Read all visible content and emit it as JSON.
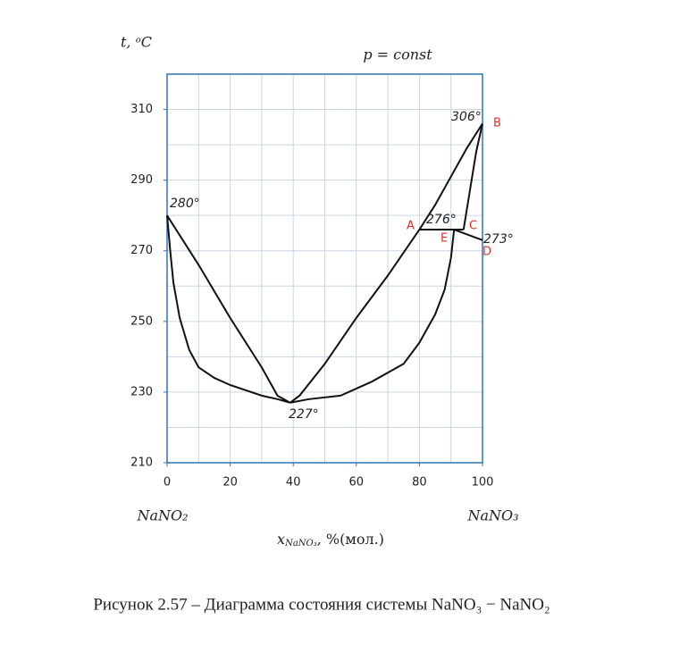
{
  "chart_data": {
    "type": "line",
    "title": "p = const",
    "ylabel": "t, ᵒC",
    "xlabel": {
      "main": "x",
      "sub": "NaNO₃",
      "rest": ", %(мол.)"
    },
    "left_component": "NaNO₂",
    "right_component": "NaNO₃",
    "caption": "Рисунок 2.57 – Диаграмма состояния системы NaNO₃ − NaNO₂",
    "xlim": [
      0,
      100
    ],
    "ylim": [
      210,
      320
    ],
    "xticks": [
      0,
      20,
      40,
      60,
      80,
      100
    ],
    "yticks": [
      210,
      230,
      250,
      270,
      290,
      310
    ],
    "xgrid": [
      10,
      20,
      30,
      40,
      50,
      60,
      70,
      80,
      90
    ],
    "ygrid": [
      220,
      230,
      240,
      250,
      260,
      270,
      280,
      290,
      300,
      310
    ],
    "grid_color": "#c9d6e3",
    "frame_color": "#2e75b6",
    "label_color": "#e03030",
    "series": [
      {
        "color": "#111111",
        "x": [
          0,
          10,
          20,
          30,
          35,
          39
        ],
        "y": [
          280,
          266,
          251,
          237,
          229,
          227
        ]
      },
      {
        "color": "#111111",
        "x": [
          0,
          1,
          2,
          4,
          7,
          10,
          15,
          20,
          30,
          35,
          39
        ],
        "y": [
          280,
          270,
          261,
          251,
          242,
          237,
          234,
          232,
          229,
          228,
          227
        ]
      },
      {
        "color": "#111111",
        "x": [
          39,
          42,
          50,
          60,
          70,
          80,
          85,
          90,
          95,
          100
        ],
        "y": [
          227,
          229,
          238,
          251,
          263,
          276,
          283,
          291,
          299,
          306
        ]
      },
      {
        "color": "#111111",
        "x": [
          39,
          45,
          55,
          65,
          75,
          80,
          85,
          88,
          90,
          91
        ],
        "y": [
          227,
          228,
          229,
          233,
          238,
          244,
          252,
          259,
          268,
          276
        ]
      },
      {
        "color": "#111111",
        "x": [
          94,
          96,
          98,
          100
        ],
        "y": [
          276,
          287,
          298,
          306
        ]
      },
      {
        "color": "#111111",
        "x": [
          80,
          94
        ],
        "y": [
          276,
          276
        ]
      },
      {
        "color": "#111111",
        "x": [
          91,
          100
        ],
        "y": [
          276,
          273
        ]
      }
    ],
    "annotations": [
      "306°",
      "280°",
      "276°",
      "273°",
      "227°"
    ],
    "point_labels": [
      "A",
      "B",
      "C",
      "D",
      "E"
    ]
  }
}
